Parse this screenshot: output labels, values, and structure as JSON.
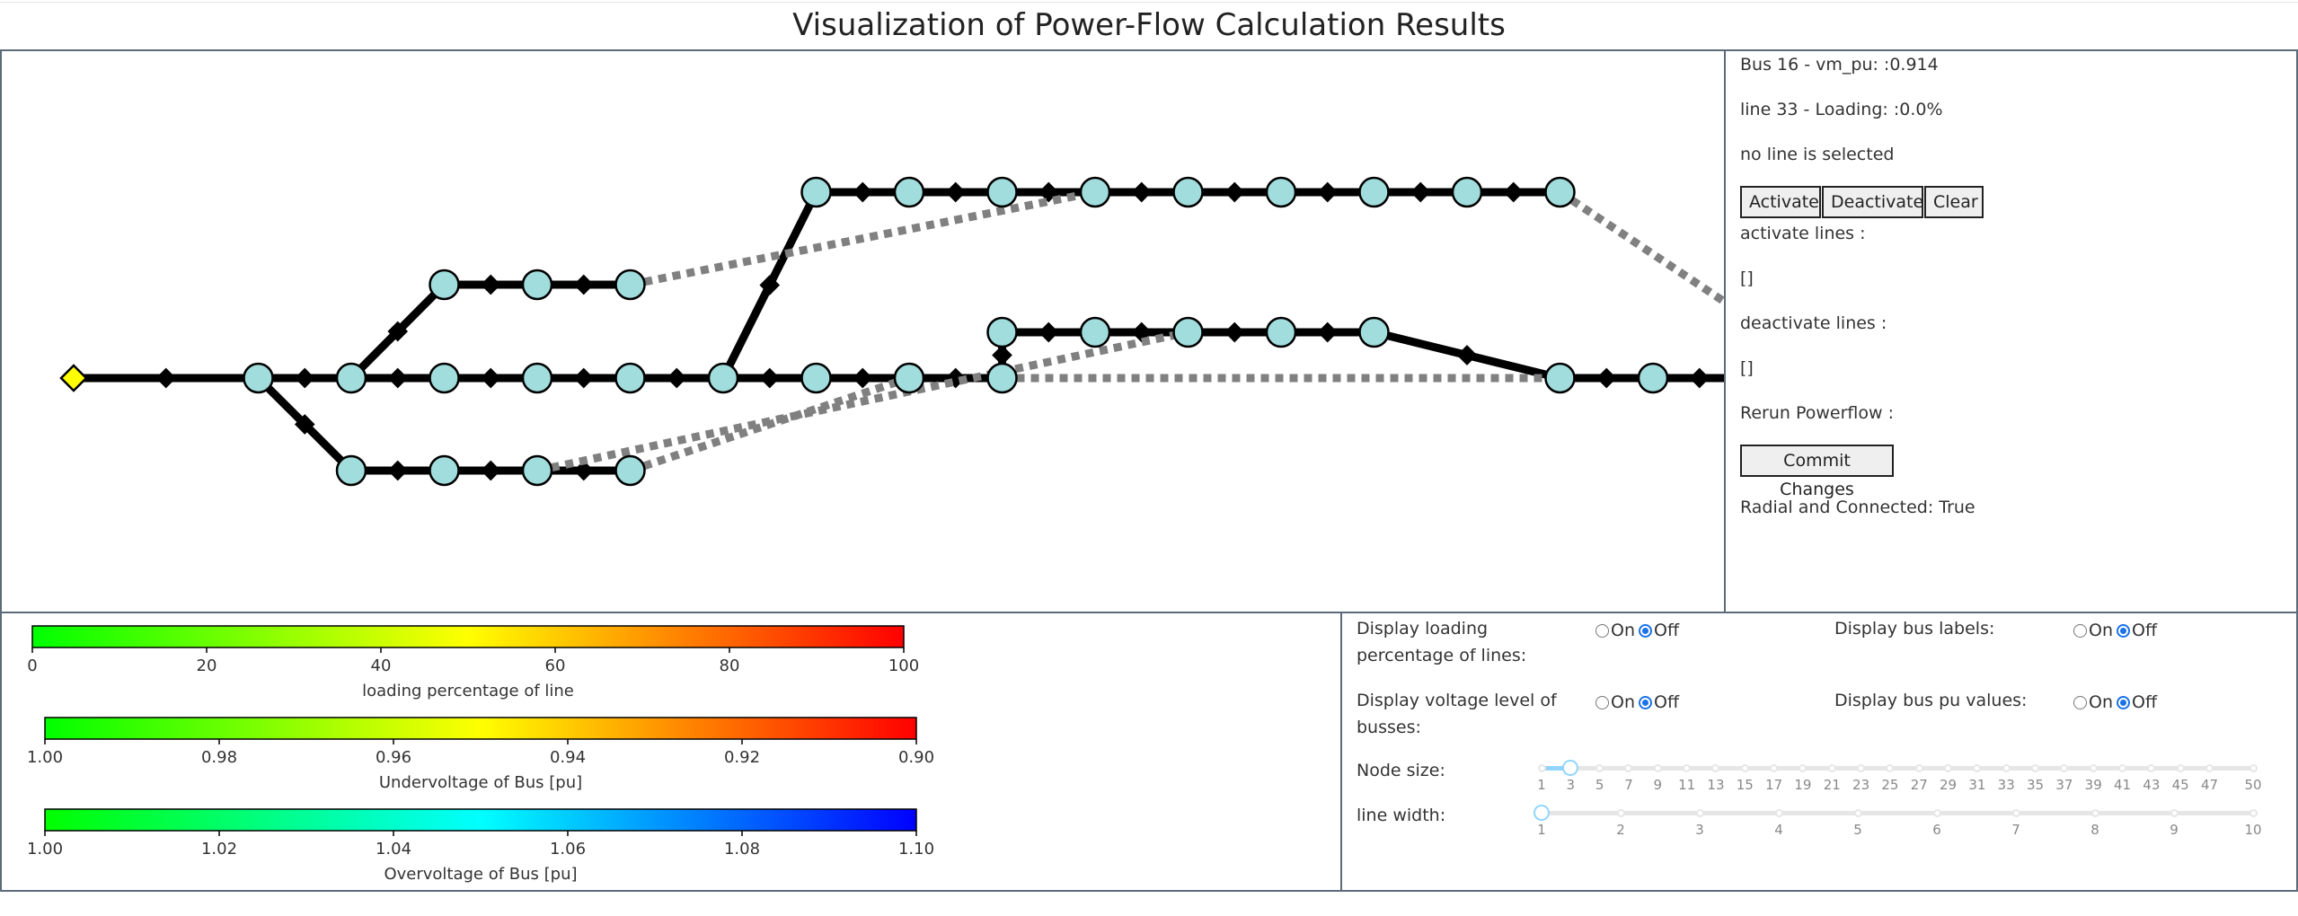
{
  "title": "Visualization of Power-Flow Calculation Results",
  "info": {
    "bus_status": "Bus 16 - vm_pu: :0.914",
    "line_status": "line 33 - Loading: :0.0%",
    "selection_status": "no line is selected",
    "activate_button": "Activate",
    "deactivate_button": "Deactivate",
    "clear_button": "Clear",
    "activate_lines_label": "activate lines :",
    "activate_lines_value": "[]",
    "deactivate_lines_label": "deactivate lines :",
    "deactivate_lines_value": "[]",
    "rerun_label": "Rerun Powerflow :",
    "commit_button": "Commit Changes",
    "radial_status": "Radial and Connected: True"
  },
  "legend": {
    "loading": {
      "title": "loading percentage of line",
      "ticks": [
        "0",
        "20",
        "40",
        "60",
        "80",
        "100"
      ],
      "colors": [
        "#00ff00",
        "#ffff00",
        "#ff0000"
      ]
    },
    "undervoltage": {
      "title": "Undervoltage of Bus [pu]",
      "ticks": [
        "1.00",
        "0.98",
        "0.96",
        "0.94",
        "0.92",
        "0.90"
      ],
      "colors": [
        "#00ff00",
        "#ffff00",
        "#ff0000"
      ]
    },
    "overvoltage": {
      "title": "Overvoltage of Bus [pu]",
      "ticks": [
        "1.00",
        "1.02",
        "1.04",
        "1.06",
        "1.08",
        "1.10"
      ],
      "colors": [
        "#00ff00",
        "#00ffff",
        "#0000ff"
      ]
    }
  },
  "controls": {
    "loading_label": "Display loading percentage of lines:",
    "voltage_label": "Display voltage level of busses:",
    "bus_labels_label": "Display bus labels:",
    "bus_pu_label": "Display bus pu values:",
    "on_label": "On",
    "off_label": "Off",
    "node_size_label": "Node size:",
    "node_size_marks": [
      "1",
      "3",
      "5",
      "7",
      "9",
      "11",
      "13",
      "15",
      "17",
      "19",
      "21",
      "23",
      "25",
      "27",
      "29",
      "31",
      "33",
      "35",
      "37",
      "39",
      "41",
      "43",
      "45",
      "47",
      "50"
    ],
    "node_size_value": 3,
    "line_width_label": "line width:",
    "line_width_marks": [
      "1",
      "2",
      "3",
      "4",
      "5",
      "6",
      "7",
      "8",
      "9",
      "10"
    ],
    "line_width_value": 1
  },
  "graph": {
    "node_fill": "#a1dddd",
    "ext_grid_fill": "#ffff00",
    "active_line_color": "#000000",
    "inactive_line_color": "#808080"
  }
}
